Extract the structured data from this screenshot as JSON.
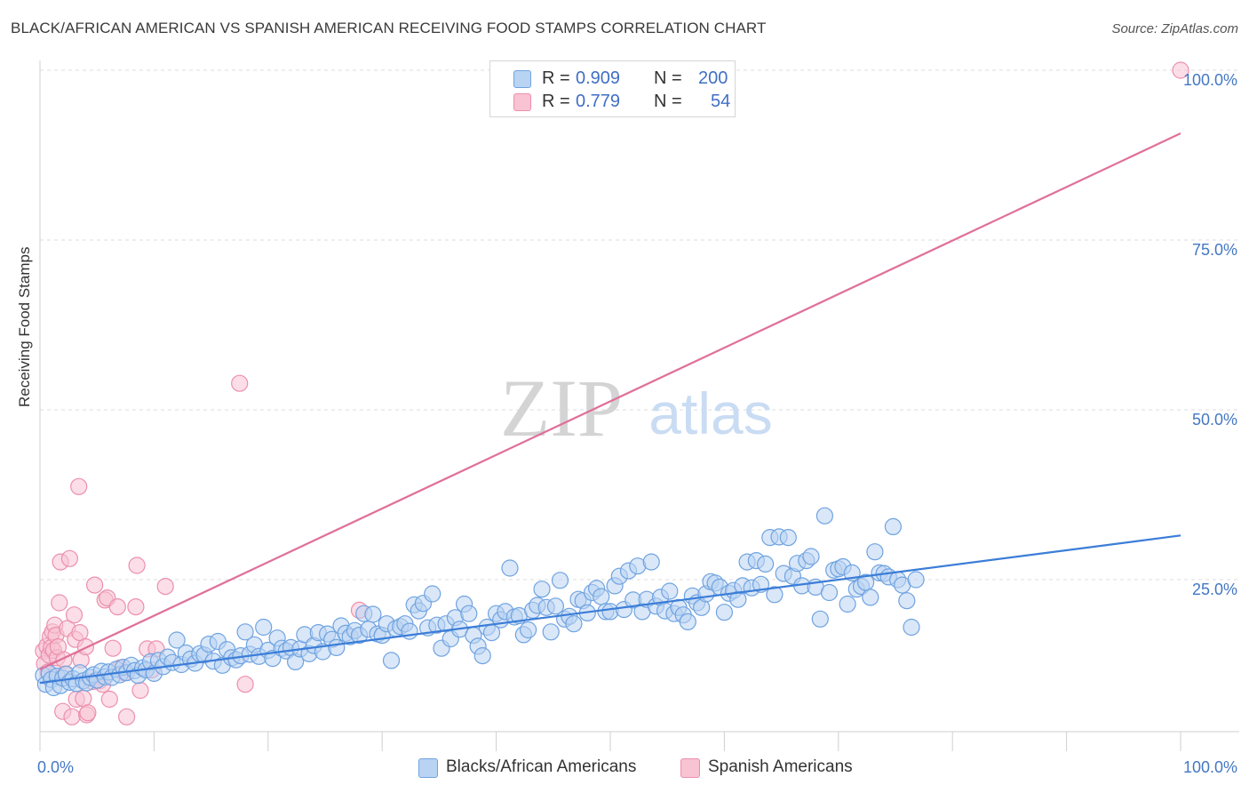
{
  "header": {
    "title": "BLACK/AFRICAN AMERICAN VS SPANISH AMERICAN RECEIVING FOOD STAMPS CORRELATION CHART",
    "source": "Source: ZipAtlas.com"
  },
  "watermark": {
    "zip": "ZIP",
    "atlas": "atlas"
  },
  "stats_legend": {
    "rows": [
      {
        "r_label": "R =",
        "r_value": "0.909",
        "n_label": "N =",
        "n_value": "200",
        "color": "#a9c8f0"
      },
      {
        "r_label": "R =",
        "r_value": "0.779",
        "n_label": "N =",
        "n_value": "54",
        "color": "#f5b8cb"
      }
    ]
  },
  "chart_data": {
    "type": "scatter",
    "title": "BLACK/AFRICAN AMERICAN VS SPANISH AMERICAN RECEIVING FOOD STAMPS CORRELATION CHART",
    "xlabel": "",
    "ylabel": "Receiving Food Stamps",
    "xlim": [
      0,
      100
    ],
    "ylim": [
      0,
      100
    ],
    "x_tick_labels": [
      "0.0%",
      "100.0%"
    ],
    "y_tick_labels": [
      "25.0%",
      "50.0%",
      "75.0%",
      "100.0%"
    ],
    "y_ticks": [
      25,
      50,
      75,
      100
    ],
    "grid": "horizontal dashed",
    "legend_position": "bottom-center",
    "series": [
      {
        "name": "Blacks/African Americans",
        "color": "#6fa3e0",
        "fill": "#b9d3f3",
        "trend": {
          "x": [
            0,
            100
          ],
          "y": [
            9.8,
            31.5
          ]
        },
        "points": [
          [
            0.3,
            10.9
          ],
          [
            0.5,
            9.6
          ],
          [
            0.8,
            11.2
          ],
          [
            1.0,
            10.3
          ],
          [
            1.2,
            9.1
          ],
          [
            1.5,
            10.8
          ],
          [
            1.8,
            9.4
          ],
          [
            2.0,
            10.5
          ],
          [
            2.3,
            11.1
          ],
          [
            2.6,
            9.9
          ],
          [
            2.9,
            10.4
          ],
          [
            3.2,
            9.7
          ],
          [
            3.5,
            11.3
          ],
          [
            3.8,
            10.1
          ],
          [
            4.1,
            9.8
          ],
          [
            4.4,
            10.6
          ],
          [
            4.7,
            11.0
          ],
          [
            5.0,
            10.2
          ],
          [
            5.4,
            11.5
          ],
          [
            5.7,
            10.7
          ],
          [
            6.0,
            11.4
          ],
          [
            6.3,
            10.6
          ],
          [
            6.7,
            11.8
          ],
          [
            7.0,
            11.0
          ],
          [
            7.3,
            12.1
          ],
          [
            7.6,
            11.3
          ],
          [
            8.0,
            12.4
          ],
          [
            8.3,
            11.6
          ],
          [
            8.6,
            10.9
          ],
          [
            9.0,
            12.0
          ],
          [
            9.3,
            11.7
          ],
          [
            9.7,
            12.9
          ],
          [
            10.0,
            11.2
          ],
          [
            10.4,
            13.1
          ],
          [
            10.8,
            12.2
          ],
          [
            11.2,
            13.6
          ],
          [
            11.6,
            12.8
          ],
          [
            12.0,
            16.1
          ],
          [
            12.4,
            12.5
          ],
          [
            12.8,
            14.2
          ],
          [
            13.2,
            13.3
          ],
          [
            13.6,
            12.7
          ],
          [
            14.0,
            14.1
          ],
          [
            14.4,
            13.9
          ],
          [
            14.8,
            15.5
          ],
          [
            15.2,
            13.0
          ],
          [
            15.6,
            15.9
          ],
          [
            16.0,
            12.4
          ],
          [
            16.4,
            14.7
          ],
          [
            16.8,
            13.5
          ],
          [
            17.2,
            13.2
          ],
          [
            17.6,
            13.8
          ],
          [
            18.0,
            17.3
          ],
          [
            18.4,
            14.0
          ],
          [
            18.8,
            15.4
          ],
          [
            19.2,
            13.7
          ],
          [
            19.6,
            18.0
          ],
          [
            20.0,
            14.6
          ],
          [
            20.4,
            13.4
          ],
          [
            20.8,
            16.4
          ],
          [
            21.2,
            14.9
          ],
          [
            21.6,
            14.5
          ],
          [
            22.0,
            15.0
          ],
          [
            22.4,
            12.9
          ],
          [
            22.8,
            14.8
          ],
          [
            23.2,
            16.9
          ],
          [
            23.6,
            14.1
          ],
          [
            24.0,
            15.3
          ],
          [
            24.4,
            17.2
          ],
          [
            24.8,
            14.4
          ],
          [
            25.2,
            17.0
          ],
          [
            25.6,
            16.2
          ],
          [
            26.0,
            15.0
          ],
          [
            26.4,
            18.2
          ],
          [
            26.8,
            17.1
          ],
          [
            27.2,
            16.6
          ],
          [
            27.6,
            17.5
          ],
          [
            28.0,
            16.8
          ],
          [
            28.4,
            20.0
          ],
          [
            28.8,
            17.7
          ],
          [
            29.2,
            19.9
          ],
          [
            29.6,
            17.0
          ],
          [
            30.0,
            16.8
          ],
          [
            30.4,
            18.5
          ],
          [
            30.8,
            13.1
          ],
          [
            31.2,
            17.8
          ],
          [
            31.6,
            18.1
          ],
          [
            32.0,
            18.5
          ],
          [
            32.4,
            17.4
          ],
          [
            32.8,
            21.3
          ],
          [
            33.2,
            20.4
          ],
          [
            33.6,
            21.5
          ],
          [
            34.0,
            17.9
          ],
          [
            34.4,
            22.9
          ],
          [
            34.8,
            18.3
          ],
          [
            35.2,
            14.9
          ],
          [
            35.6,
            18.5
          ],
          [
            36.0,
            16.3
          ],
          [
            36.4,
            19.4
          ],
          [
            36.8,
            17.7
          ],
          [
            37.2,
            21.4
          ],
          [
            37.6,
            20.0
          ],
          [
            38.0,
            16.8
          ],
          [
            38.4,
            15.2
          ],
          [
            38.8,
            13.8
          ],
          [
            39.2,
            18.0
          ],
          [
            39.6,
            17.2
          ],
          [
            40.0,
            20.0
          ],
          [
            40.4,
            19.1
          ],
          [
            40.8,
            20.3
          ],
          [
            41.2,
            26.7
          ],
          [
            41.6,
            19.5
          ],
          [
            42.0,
            19.7
          ],
          [
            42.4,
            16.9
          ],
          [
            42.8,
            17.6
          ],
          [
            43.2,
            20.5
          ],
          [
            43.6,
            21.2
          ],
          [
            44.0,
            23.6
          ],
          [
            44.4,
            20.9
          ],
          [
            44.8,
            17.3
          ],
          [
            45.2,
            21.1
          ],
          [
            45.6,
            24.9
          ],
          [
            46.0,
            19.2
          ],
          [
            46.4,
            19.6
          ],
          [
            46.8,
            18.5
          ],
          [
            47.2,
            22.1
          ],
          [
            47.6,
            21.9
          ],
          [
            48.0,
            20.1
          ],
          [
            48.4,
            23.1
          ],
          [
            48.8,
            23.7
          ],
          [
            49.2,
            22.5
          ],
          [
            49.6,
            20.3
          ],
          [
            50.0,
            20.3
          ],
          [
            50.4,
            24.1
          ],
          [
            50.8,
            25.5
          ],
          [
            51.2,
            20.6
          ],
          [
            51.6,
            26.3
          ],
          [
            52.0,
            22.0
          ],
          [
            52.4,
            27.0
          ],
          [
            52.8,
            20.3
          ],
          [
            53.2,
            22.1
          ],
          [
            53.6,
            27.6
          ],
          [
            54.0,
            21.1
          ],
          [
            54.4,
            22.4
          ],
          [
            54.8,
            20.4
          ],
          [
            55.2,
            23.3
          ],
          [
            55.6,
            20.0
          ],
          [
            56.0,
            20.9
          ],
          [
            56.4,
            19.8
          ],
          [
            56.8,
            18.8
          ],
          [
            57.2,
            22.6
          ],
          [
            57.6,
            21.6
          ],
          [
            58.0,
            20.9
          ],
          [
            58.4,
            22.9
          ],
          [
            58.8,
            24.7
          ],
          [
            59.2,
            24.5
          ],
          [
            59.6,
            23.9
          ],
          [
            60.0,
            20.2
          ],
          [
            60.4,
            23.0
          ],
          [
            60.8,
            23.4
          ],
          [
            61.2,
            22.1
          ],
          [
            61.6,
            24.1
          ],
          [
            62.0,
            27.6
          ],
          [
            62.4,
            23.8
          ],
          [
            62.8,
            27.8
          ],
          [
            63.2,
            24.3
          ],
          [
            63.6,
            27.3
          ],
          [
            64.0,
            31.2
          ],
          [
            64.4,
            22.8
          ],
          [
            64.8,
            31.3
          ],
          [
            65.2,
            25.9
          ],
          [
            65.6,
            31.2
          ],
          [
            66.0,
            25.5
          ],
          [
            66.4,
            27.4
          ],
          [
            66.8,
            24.1
          ],
          [
            67.2,
            27.8
          ],
          [
            67.6,
            28.4
          ],
          [
            68.0,
            23.9
          ],
          [
            68.4,
            19.2
          ],
          [
            68.8,
            34.4
          ],
          [
            69.2,
            23.1
          ],
          [
            69.6,
            26.4
          ],
          [
            70.0,
            26.6
          ],
          [
            70.4,
            26.9
          ],
          [
            70.8,
            21.4
          ],
          [
            71.2,
            26.0
          ],
          [
            71.6,
            23.6
          ],
          [
            72.0,
            24.0
          ],
          [
            72.4,
            24.6
          ],
          [
            72.8,
            22.4
          ],
          [
            73.2,
            29.1
          ],
          [
            73.6,
            26.0
          ],
          [
            74.0,
            25.9
          ],
          [
            74.4,
            25.4
          ],
          [
            74.8,
            32.8
          ],
          [
            75.2,
            25.0
          ],
          [
            75.6,
            24.2
          ],
          [
            76.0,
            21.9
          ],
          [
            76.4,
            18.0
          ],
          [
            76.8,
            25.0
          ]
        ]
      },
      {
        "name": "Spanish Americans",
        "color": "#ec8fae",
        "fill": "#f8c3d3",
        "trend": {
          "x": [
            0,
            100
          ],
          "y": [
            11.8,
            90.7
          ]
        },
        "points": [
          [
            0.3,
            14.5
          ],
          [
            0.4,
            12.6
          ],
          [
            0.6,
            15.2
          ],
          [
            0.7,
            11.4
          ],
          [
            0.8,
            13.9
          ],
          [
            0.9,
            16.6
          ],
          [
            1.0,
            15.0
          ],
          [
            1.1,
            17.3
          ],
          [
            1.2,
            14.6
          ],
          [
            1.3,
            18.3
          ],
          [
            1.4,
            16.8
          ],
          [
            1.5,
            13.5
          ],
          [
            1.6,
            15.1
          ],
          [
            1.7,
            21.6
          ],
          [
            1.8,
            27.6
          ],
          [
            2.0,
            5.6
          ],
          [
            2.1,
            13.2
          ],
          [
            2.2,
            11.1
          ],
          [
            2.4,
            17.8
          ],
          [
            2.6,
            28.1
          ],
          [
            2.8,
            4.8
          ],
          [
            3.0,
            19.8
          ],
          [
            3.1,
            16.2
          ],
          [
            3.2,
            7.4
          ],
          [
            3.4,
            38.7
          ],
          [
            3.5,
            17.2
          ],
          [
            3.6,
            13.2
          ],
          [
            3.8,
            7.5
          ],
          [
            4.0,
            15.1
          ],
          [
            4.1,
            5.1
          ],
          [
            4.2,
            5.4
          ],
          [
            4.6,
            10.0
          ],
          [
            4.8,
            24.2
          ],
          [
            5.2,
            10.1
          ],
          [
            5.5,
            9.6
          ],
          [
            5.7,
            22.0
          ],
          [
            5.9,
            22.3
          ],
          [
            6.1,
            7.4
          ],
          [
            6.4,
            14.9
          ],
          [
            6.8,
            21.0
          ],
          [
            7.0,
            12.0
          ],
          [
            7.4,
            11.3
          ],
          [
            7.6,
            4.8
          ],
          [
            8.4,
            21.0
          ],
          [
            8.5,
            27.1
          ],
          [
            8.8,
            8.7
          ],
          [
            9.4,
            14.8
          ],
          [
            9.8,
            11.7
          ],
          [
            10.2,
            14.8
          ],
          [
            11.0,
            24.0
          ],
          [
            17.5,
            53.9
          ],
          [
            18.0,
            9.6
          ],
          [
            28.0,
            20.5
          ],
          [
            100.0,
            100.0
          ]
        ]
      }
    ]
  }
}
